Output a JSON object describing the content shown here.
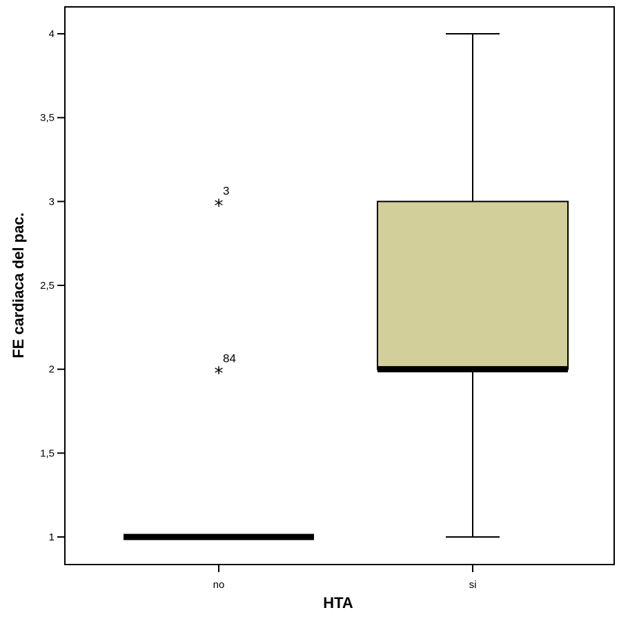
{
  "chart_data": {
    "type": "boxplot",
    "xlabel": "HTA",
    "ylabel": "FE cardiaca del pac.",
    "ylim": [
      0.85,
      4.165
    ],
    "yticks": [
      {
        "value": 1,
        "label": "1"
      },
      {
        "value": 1.5,
        "label": "1,5"
      },
      {
        "value": 2,
        "label": "2"
      },
      {
        "value": 2.5,
        "label": "2,5"
      },
      {
        "value": 3,
        "label": "3"
      },
      {
        "value": 3.5,
        "label": "3,5"
      },
      {
        "value": 4,
        "label": "4"
      }
    ],
    "categories": [
      "no",
      "si"
    ],
    "box_color": "#d3cf9b",
    "groups": [
      {
        "category": "no",
        "min": 1,
        "q1": 1,
        "median": 1,
        "q3": 1,
        "max": 1,
        "outliers": [
          {
            "value": 3,
            "label": "3"
          },
          {
            "value": 2,
            "label": "84"
          }
        ]
      },
      {
        "category": "si",
        "min": 1,
        "q1": 2,
        "median": 2,
        "q3": 3,
        "max": 4,
        "outliers": []
      }
    ]
  }
}
